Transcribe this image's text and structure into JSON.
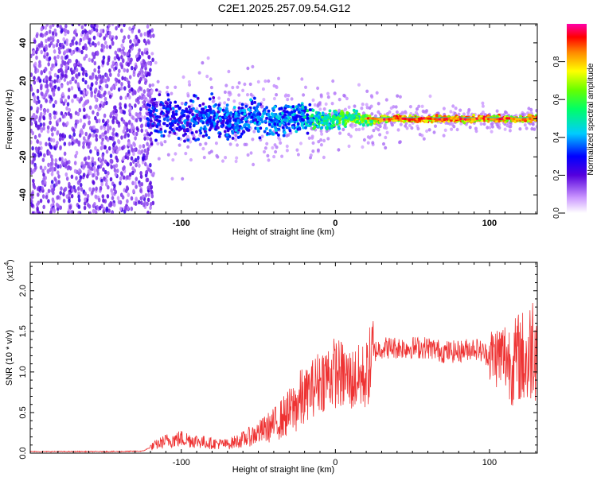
{
  "title": "C2E1.2025.257.09.54.G12",
  "colorbar": {
    "label": "Normalized spectral amplitude",
    "ticks": [
      "0.0",
      "0.2",
      "0.4",
      "0.6",
      "0.8"
    ],
    "range": [
      0,
      1
    ]
  },
  "chart_data": [
    {
      "type": "heatmap",
      "name": "spectrogram",
      "xlabel": "Height of straight line (km)",
      "ylabel": "Frequency (Hz)",
      "xlim": [
        -198,
        131
      ],
      "ylim": [
        -50,
        50
      ],
      "xticks": [
        -100,
        0,
        100
      ],
      "xtick_labels": [
        "-100",
        "0",
        "100"
      ],
      "yticks": [
        -40,
        -20,
        0,
        20,
        40
      ],
      "ytick_labels": [
        "-40",
        "-20",
        "0",
        "20",
        "40"
      ],
      "description_regions": [
        {
          "x_range": [
            -198,
            -120
          ],
          "pattern": "broadband noise",
          "amplitude": [
            0.0,
            0.2
          ]
        },
        {
          "x_range": [
            -120,
            -20
          ],
          "pattern": "band narrowing from +/-10 Hz to +/-5 Hz",
          "amplitude": [
            0.1,
            0.5
          ]
        },
        {
          "x_range": [
            -20,
            20
          ],
          "pattern": "narrowing band near 0 Hz",
          "amplitude": [
            0.3,
            0.7
          ]
        },
        {
          "x_range": [
            20,
            131
          ],
          "pattern": "narrow tone near 0 Hz",
          "amplitude": [
            0.7,
            1.0
          ]
        }
      ]
    },
    {
      "type": "line",
      "name": "snr",
      "xlabel": "Height of straight line (km)",
      "ylabel": "SNR (10 * v/v)",
      "multiplier": "(x10",
      "multiplier_exp": "4",
      "multiplier_close": ")",
      "xlim": [
        -198,
        131
      ],
      "ylim": [
        0,
        23500
      ],
      "xticks": [
        -100,
        0,
        100
      ],
      "xtick_labels": [
        "-100",
        "0",
        "100"
      ],
      "yticks": [
        0,
        5000,
        10000,
        15000,
        20000
      ],
      "ytick_labels": [
        "0.0",
        "0.5",
        "1.0",
        "1.5",
        "2.0"
      ],
      "color": "#ee3333",
      "series": [
        {
          "name": "SNR",
          "x": [
            -198,
            -180,
            -160,
            -140,
            -125,
            -118,
            -110,
            -100,
            -90,
            -80,
            -70,
            -60,
            -50,
            -40,
            -30,
            -20,
            -10,
            0,
            10,
            20,
            25,
            30,
            40,
            50,
            60,
            70,
            80,
            90,
            100,
            110,
            115,
            120,
            125,
            128,
            131
          ],
          "y": [
            200,
            200,
            200,
            200,
            250,
            900,
            1500,
            1800,
            1500,
            1200,
            1100,
            1700,
            2500,
            3500,
            5000,
            7000,
            9000,
            10000,
            9000,
            9500,
            12500,
            13000,
            13000,
            13000,
            13000,
            12500,
            12500,
            13000,
            12000,
            12000,
            11000,
            12000,
            11000,
            14000,
            13000
          ]
        }
      ]
    }
  ]
}
